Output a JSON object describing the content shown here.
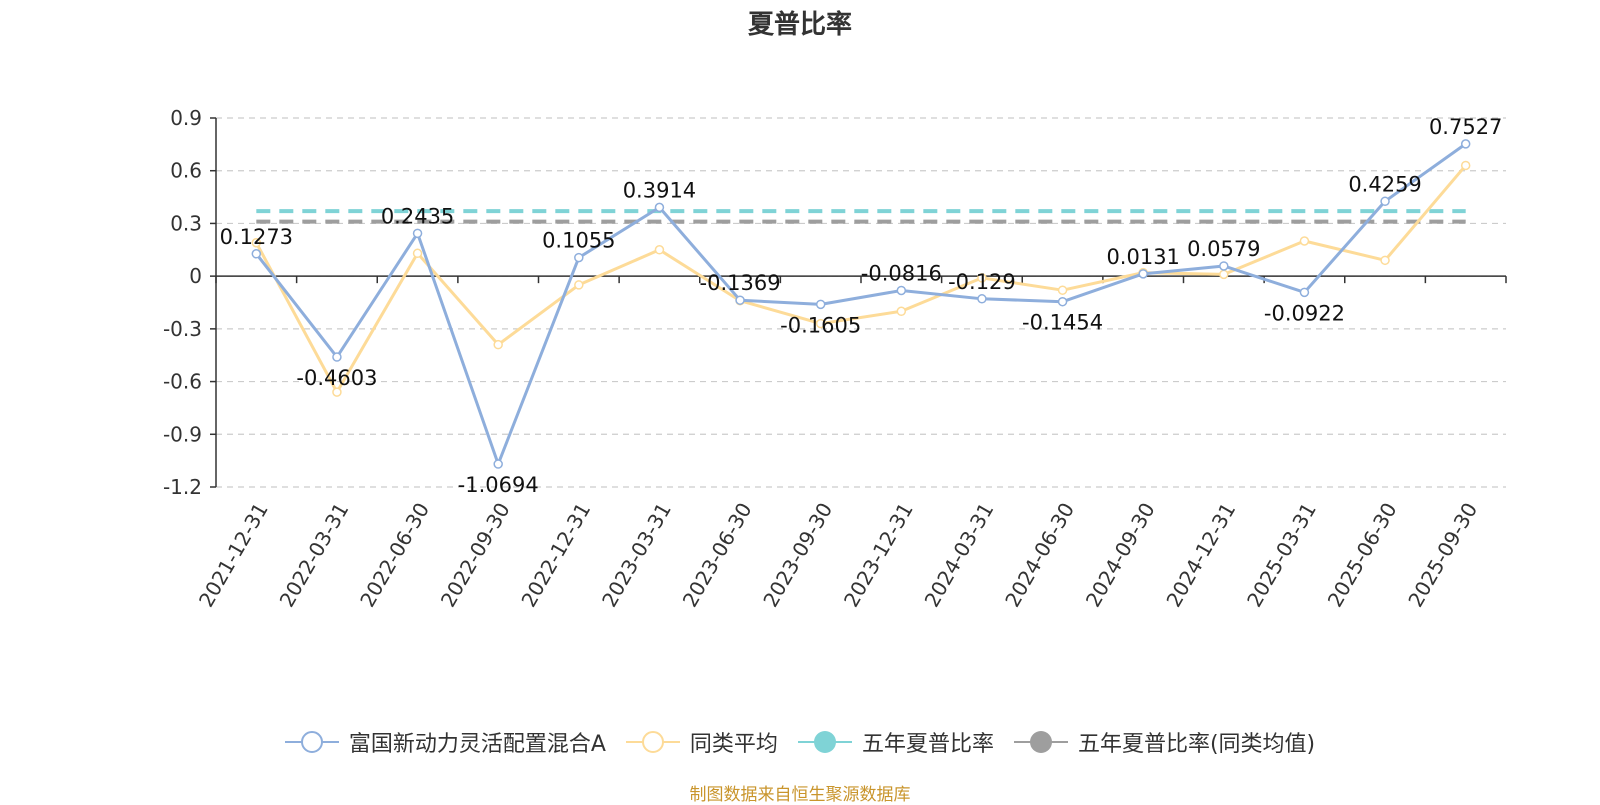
{
  "colors": {
    "fund": "#8eaedc",
    "avg": "#fddb98",
    "five_year": "#7fd3d6",
    "five_year_avg": "#9e9e9e",
    "grid": "#cccccc",
    "axis": "#333333",
    "source_text": "#c9952c"
  },
  "chart_data": {
    "type": "line",
    "title": "夏普比率",
    "categories": [
      "2021-12-31",
      "2022-03-31",
      "2022-06-30",
      "2022-09-30",
      "2022-12-31",
      "2023-03-31",
      "2023-06-30",
      "2023-09-30",
      "2023-12-31",
      "2024-03-31",
      "2024-06-30",
      "2024-09-30",
      "2024-12-31",
      "2025-03-31",
      "2025-06-30",
      "2025-09-30"
    ],
    "ylim": [
      -1.2,
      0.9
    ],
    "yticks": [
      "0.9",
      "0.6",
      "0.3",
      "0",
      "-0.3",
      "-0.6",
      "-0.9",
      "-1.2"
    ],
    "ytick_values": [
      0.9,
      0.6,
      0.3,
      0,
      -0.3,
      -0.6,
      -0.9,
      -1.2
    ],
    "grid": true,
    "legend_position": "bottom",
    "series": [
      {
        "name": "富国新动力灵活配置混合A",
        "values": [
          0.1273,
          -0.4603,
          0.2435,
          -1.0694,
          0.1055,
          0.3914,
          -0.1369,
          -0.1605,
          -0.0816,
          -0.129,
          -0.1454,
          0.0131,
          0.0579,
          -0.0922,
          0.4259,
          0.7527
        ],
        "labels": [
          "0.1273",
          "-0.4603",
          "0.2435",
          "-1.0694",
          "0.1055",
          "0.3914",
          "-0.1369",
          "-0.1605",
          "-0.0816",
          "-0.129",
          "-0.1454",
          "0.0131",
          "0.0579",
          "-0.0922",
          "0.4259",
          "0.7527"
        ]
      },
      {
        "name": "同类平均",
        "values": [
          0.19,
          -0.66,
          0.13,
          -0.39,
          -0.05,
          0.15,
          -0.14,
          -0.27,
          -0.2,
          -0.01,
          -0.08,
          0.02,
          0.01,
          0.2,
          0.09,
          0.63
        ]
      },
      {
        "name": "五年夏普比率",
        "constant": 0.37
      },
      {
        "name": "五年夏普比率(同类均值)",
        "constant": 0.31
      }
    ]
  },
  "source_note": "制图数据来自恒生聚源数据库"
}
